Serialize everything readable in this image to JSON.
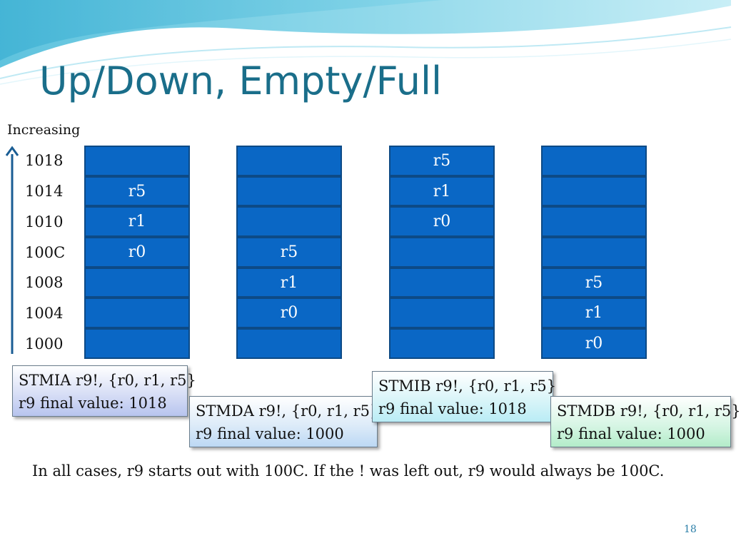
{
  "slide": {
    "title": "Up/Down, Empty/Full",
    "axis_label": "Increasing",
    "addresses": [
      "1018",
      "1014",
      "1010",
      "100C",
      "1008",
      "1004",
      "1000"
    ],
    "columns": [
      {
        "cells": [
          "",
          "r5",
          "r1",
          "r0",
          "",
          "",
          ""
        ]
      },
      {
        "cells": [
          "",
          "",
          "",
          "r5",
          "r1",
          "r0",
          ""
        ]
      },
      {
        "cells": [
          "r5",
          "r1",
          "r0",
          "",
          "",
          "",
          ""
        ]
      },
      {
        "cells": [
          "",
          "",
          "",
          "",
          "r5",
          "r1",
          "r0"
        ]
      }
    ],
    "boxes": [
      {
        "instr": "STMIA r9!, {r0, r1, r5}",
        "final": "r9 final value: 1018"
      },
      {
        "instr": "STMDA r9!, {r0, r1, r5}",
        "final": "r9 final value: 1000"
      },
      {
        "instr": "STMIB r9!, {r0, r1, r5}",
        "final": "r9 final value: 1018"
      },
      {
        "instr": "STMDB r9!, {r0, r1, r5}",
        "final": "r9 final value: 1000"
      }
    ],
    "note": "In all cases, r9 starts out with 100C. If the ! was left out, r9 would always be 100C.",
    "page_number": "18",
    "colors": {
      "title": "#1a6e8a",
      "cell_fill": "#0a67c5",
      "cell_border": "#0d4a86",
      "arrow": "#1a5d94"
    }
  }
}
